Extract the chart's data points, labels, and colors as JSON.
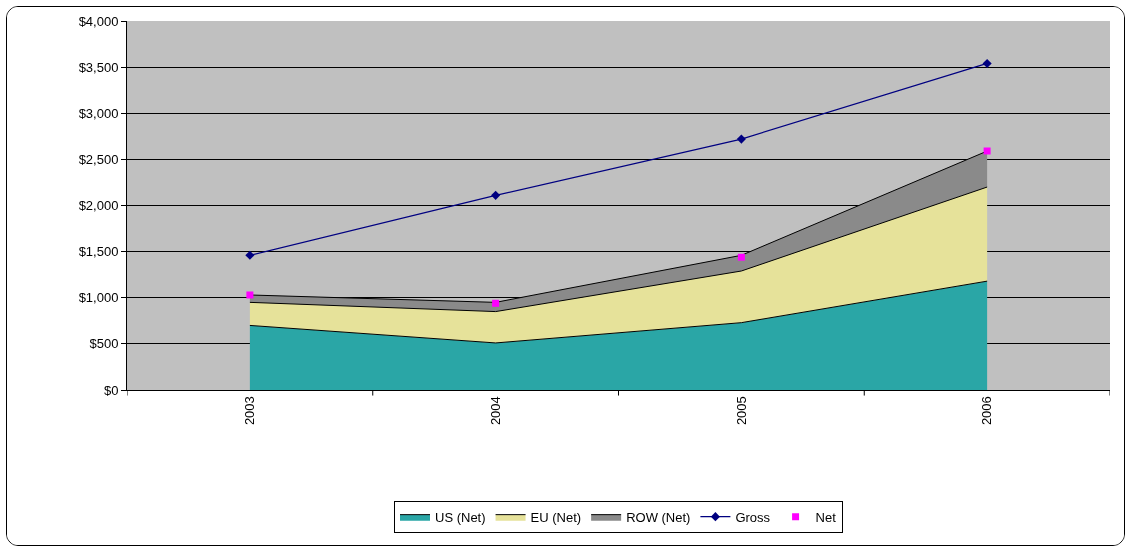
{
  "chart_data": {
    "type": "area",
    "stacked": true,
    "categories": [
      "2003",
      "2004",
      "2005",
      "2006"
    ],
    "ylim": [
      0,
      4000
    ],
    "yticks": [
      {
        "value": 0,
        "label": "$0"
      },
      {
        "value": 500,
        "label": "$500"
      },
      {
        "value": 1000,
        "label": "$1,000"
      },
      {
        "value": 1500,
        "label": "$1,500"
      },
      {
        "value": 2000,
        "label": "$2,000"
      },
      {
        "value": 2500,
        "label": "$2,500"
      },
      {
        "value": 3000,
        "label": "$3,000"
      },
      {
        "value": 3500,
        "label": "$3,500"
      },
      {
        "value": 4000,
        "label": "$4,000"
      }
    ],
    "grid": "y",
    "legend": "bottom",
    "series": [
      {
        "name": "US (Net)",
        "color": "#2aa6a6",
        "values": [
          700,
          510,
          730,
          1180
        ]
      },
      {
        "name": "EU (Net)",
        "color": "#e6e29a",
        "values": [
          250,
          340,
          560,
          1020
        ]
      },
      {
        "name": "ROW (Net)",
        "color": "#8a8a8a",
        "values": [
          80,
          100,
          170,
          390
        ]
      },
      {
        "name": "Gross",
        "type": "line",
        "color": "#000080",
        "marker": "diamond",
        "values": [
          1460,
          2110,
          2720,
          3540
        ]
      },
      {
        "name": "Net",
        "type": "scatter",
        "color": "#ff00ff",
        "marker": "square",
        "values": [
          1030,
          940,
          1440,
          2590
        ]
      }
    ]
  }
}
